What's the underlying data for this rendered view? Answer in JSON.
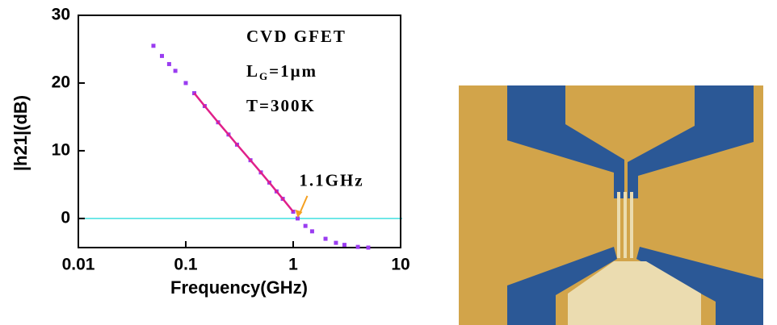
{
  "chart_data": {
    "type": "scatter",
    "xlabel": "Frequency(GHz)",
    "ylabel": "|h21|(dB)",
    "xscale": "log",
    "xlim": [
      0.01,
      10
    ],
    "xticks": [
      0.01,
      0.1,
      1,
      10
    ],
    "ylim": [
      -4.3,
      30
    ],
    "yticks": [
      0,
      10,
      20,
      30
    ],
    "series": [
      {
        "color": "#9a3cf0",
        "marker": "square",
        "x": [
          0.05,
          0.06,
          0.07,
          0.08,
          0.1,
          0.12,
          0.15,
          0.2,
          0.25,
          0.3,
          0.4,
          0.5,
          0.6,
          0.7,
          0.8,
          1.0,
          1.1,
          1.3,
          1.5,
          2,
          2.5,
          3,
          4,
          5
        ],
        "values": [
          25.5,
          24.0,
          22.8,
          21.8,
          20.0,
          18.5,
          16.6,
          14.2,
          12.4,
          10.9,
          8.6,
          6.8,
          5.3,
          4.0,
          2.9,
          1.0,
          0,
          -1.1,
          -1.9,
          -3.0,
          -3.6,
          -3.9,
          -4.2,
          -4.3
        ]
      },
      {
        "color": "#e0208a",
        "marker": "line",
        "x": [
          0.12,
          0.15,
          0.2,
          0.25,
          0.3,
          0.4,
          0.5,
          0.6,
          0.7,
          0.8,
          1.0
        ],
        "values": [
          18.5,
          16.6,
          14.2,
          12.4,
          10.9,
          8.6,
          6.8,
          5.3,
          4.0,
          2.9,
          1.0
        ]
      }
    ],
    "reference_line": {
      "y": 0,
      "color": "#40e0e0"
    },
    "annotations": [
      {
        "text": "1.1GHz",
        "x": 1.1,
        "y": 0,
        "color": "#ff0000",
        "arrow_color": "#f5a020"
      }
    ],
    "device_label": "CVD GFET",
    "gate_length": {
      "main": "L",
      "sub": "G",
      "tail": "=1μm"
    },
    "temperature": "T=300K"
  }
}
